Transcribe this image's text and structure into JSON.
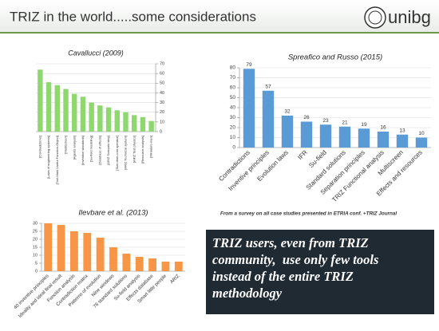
{
  "slide": {
    "title": "TRIZ in the world.....some considerations",
    "logo": "unibg",
    "note": "From a survey on all case studies presented in ETRIA conf. +TRIZ Journal",
    "callout": [
      "TRIZ users, even from TRIZ",
      "community,  use only few tools",
      "instead of the entire TRIZ",
      "methodology"
    ]
  },
  "chart_data": [
    {
      "type": "bar",
      "title": "Cavallucci (2009)",
      "color": "#8fd86f",
      "grid": true,
      "categories": [
        "[Contradictions]",
        "[Laws of engineering systems]",
        "[Tool-Main Useful Function-Object]",
        "[Multiscreen]",
        "[Agents analysis]",
        "[Inventive standards]",
        "[Su-field modeling]",
        "[Database of effects]",
        "[ARIZ Scenario step]",
        "[Size-time-cost operator]",
        "[ARIZ Technical system]",
        "[ARIZ Test physics]",
        "[Resource analysis]",
        "[Miniature-men]"
      ],
      "values": [
        64,
        51,
        48,
        44,
        39,
        36,
        30,
        27,
        25,
        22,
        20,
        17,
        15,
        11
      ],
      "ylim": [
        0,
        70
      ],
      "yticks": [
        0,
        10,
        20,
        30,
        40,
        50,
        60,
        70
      ]
    },
    {
      "type": "bar",
      "title": "Spreafico and Russo (2015)",
      "color": "#5b9bd5",
      "grid": true,
      "categories": [
        "Contradictions",
        "Inventive principles",
        "Evolution laws",
        "IFR",
        "Su-field",
        "Standard solutions",
        "Separation principles",
        "TRIZ Functional analysis",
        "Multiscreen",
        "Effects and resources"
      ],
      "values": [
        79,
        57,
        32,
        26,
        23,
        21,
        19,
        16,
        13,
        10
      ],
      "ylim": [
        0,
        80
      ],
      "yticks": [
        0,
        10,
        20,
        30,
        40,
        50,
        60,
        70,
        80
      ]
    },
    {
      "type": "bar",
      "title": "Ilevbare et al. (2013)",
      "color": "#f79646",
      "grid": true,
      "categories": [
        "40 inventive principles",
        "Ideality and ideal final result",
        "Function analysis",
        "Contradiction matrix",
        "Patterns of evolution",
        "Nine windows",
        "76 standard solutions",
        "Su-field analysis",
        "Effects database",
        "Smart little people",
        "ARIZ"
      ],
      "values": [
        30,
        29,
        25,
        24,
        21,
        15,
        11,
        9,
        8,
        6,
        6
      ],
      "ylim": [
        0,
        30
      ],
      "yticks": [
        0,
        5,
        10,
        15,
        20,
        25,
        30
      ]
    }
  ]
}
